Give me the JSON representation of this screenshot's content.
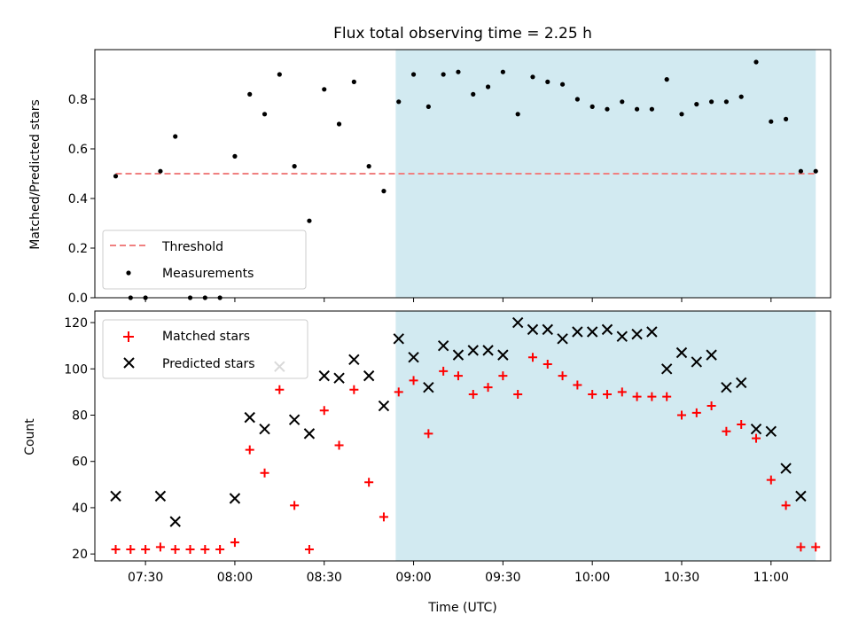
{
  "figure_title": "Flux total observing time = 2.25 h",
  "colors": {
    "shade": "#add8e6",
    "threshold": "#f08080",
    "measurement": "#000000",
    "matched": "#ff0000",
    "predicted": "#000000"
  },
  "chart_data": [
    {
      "type": "scatter",
      "title": "Flux total observing time = 2.25 h",
      "xlabel": "",
      "ylabel": "Matched/Predicted stars",
      "xlim": [
        "07:13",
        "11:20"
      ],
      "ylim": [
        0,
        1.0
      ],
      "yticks": [
        "0.0",
        "0.2",
        "0.4",
        "0.6",
        "0.8"
      ],
      "shaded_region": {
        "x_start": "08:54",
        "x_end": "11:15"
      },
      "legend": {
        "placement": "lower-left",
        "entries": [
          "Threshold",
          "Measurements"
        ]
      },
      "threshold": {
        "name": "Threshold",
        "x": [
          "07:20",
          "11:15"
        ],
        "y": 0.5
      },
      "series": [
        {
          "name": "Measurements",
          "x": [
            "07:20",
            "07:25",
            "07:30",
            "07:35",
            "07:40",
            "07:45",
            "07:50",
            "07:55",
            "08:00",
            "08:05",
            "08:10",
            "08:15",
            "08:20",
            "08:25",
            "08:30",
            "08:35",
            "08:40",
            "08:45",
            "08:50",
            "08:55",
            "09:00",
            "09:05",
            "09:10",
            "09:15",
            "09:20",
            "09:25",
            "09:30",
            "09:35",
            "09:40",
            "09:45",
            "09:50",
            "09:55",
            "10:00",
            "10:05",
            "10:10",
            "10:15",
            "10:20",
            "10:25",
            "10:30",
            "10:35",
            "10:40",
            "10:45",
            "10:50",
            "10:55",
            "11:00",
            "11:05",
            "11:10",
            "11:15"
          ],
          "y": [
            0.49,
            0.0,
            0.0,
            0.51,
            0.65,
            0.0,
            0.0,
            0.0,
            0.57,
            0.82,
            0.74,
            0.9,
            0.53,
            0.31,
            0.84,
            0.7,
            0.87,
            0.53,
            0.43,
            0.79,
            0.9,
            0.77,
            0.9,
            0.91,
            0.82,
            0.85,
            0.91,
            0.74,
            0.89,
            0.87,
            0.86,
            0.8,
            0.77,
            0.76,
            0.79,
            0.76,
            0.76,
            0.88,
            0.74,
            0.78,
            0.79,
            0.79,
            0.81,
            0.95,
            0.71,
            0.72,
            0.51,
            0.51
          ]
        }
      ]
    },
    {
      "type": "scatter",
      "title": "",
      "xlabel": "Time (UTC)",
      "ylabel": "Count",
      "xlim": [
        "07:13",
        "11:20"
      ],
      "ylim": [
        17,
        125
      ],
      "xticks": [
        "07:30",
        "08:00",
        "08:30",
        "09:00",
        "09:30",
        "10:00",
        "10:30",
        "11:00"
      ],
      "yticks": [
        "20",
        "40",
        "60",
        "80",
        "100",
        "120"
      ],
      "shaded_region": {
        "x_start": "08:54",
        "x_end": "11:15"
      },
      "legend": {
        "placement": "upper-left",
        "entries": [
          "Matched stars",
          "Predicted stars"
        ]
      },
      "series": [
        {
          "name": "Matched stars",
          "marker": "+",
          "x": [
            "07:20",
            "07:25",
            "07:30",
            "07:35",
            "07:40",
            "07:45",
            "07:50",
            "07:55",
            "08:00",
            "08:05",
            "08:10",
            "08:15",
            "08:20",
            "08:25",
            "08:30",
            "08:35",
            "08:40",
            "08:45",
            "08:50",
            "08:55",
            "09:00",
            "09:05",
            "09:10",
            "09:15",
            "09:20",
            "09:25",
            "09:30",
            "09:35",
            "09:40",
            "09:45",
            "09:50",
            "09:55",
            "10:00",
            "10:05",
            "10:10",
            "10:15",
            "10:20",
            "10:25",
            "10:30",
            "10:35",
            "10:40",
            "10:45",
            "10:50",
            "10:55",
            "11:00",
            "11:05",
            "11:10",
            "11:15"
          ],
          "y": [
            22,
            22,
            22,
            23,
            22,
            22,
            22,
            22,
            25,
            65,
            55,
            91,
            41,
            22,
            82,
            67,
            91,
            51,
            36,
            90,
            95,
            72,
            99,
            97,
            89,
            92,
            97,
            89,
            105,
            102,
            97,
            93,
            89,
            89,
            90,
            88,
            88,
            88,
            80,
            81,
            84,
            73,
            76,
            70,
            52,
            41,
            23,
            23
          ]
        },
        {
          "name": "Predicted stars",
          "marker": "x",
          "x": [
            "07:20",
            "07:35",
            "07:40",
            "08:00",
            "08:05",
            "08:10",
            "08:15",
            "08:20",
            "08:25",
            "08:30",
            "08:35",
            "08:40",
            "08:45",
            "08:50",
            "08:55",
            "09:00",
            "09:05",
            "09:10",
            "09:15",
            "09:20",
            "09:25",
            "09:30",
            "09:35",
            "09:40",
            "09:45",
            "09:50",
            "09:55",
            "10:00",
            "10:05",
            "10:10",
            "10:15",
            "10:20",
            "10:25",
            "10:30",
            "10:35",
            "10:40",
            "10:45",
            "10:50",
            "10:55",
            "11:00",
            "11:05",
            "11:10"
          ],
          "y": [
            45,
            45,
            34,
            44,
            79,
            74,
            101,
            78,
            72,
            97,
            96,
            104,
            97,
            84,
            113,
            105,
            92,
            110,
            106,
            108,
            108,
            106,
            120,
            117,
            117,
            113,
            116,
            116,
            117,
            114,
            115,
            116,
            100,
            107,
            103,
            106,
            92,
            94,
            74,
            73,
            57,
            45
          ]
        }
      ]
    }
  ]
}
